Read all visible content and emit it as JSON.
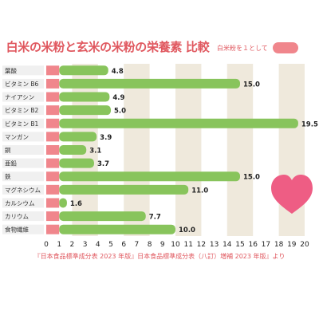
{
  "title": "白米の米粉と玄米の米粉の栄養素 比較",
  "legend": {
    "label": "白米粉を１として",
    "color": "#f0868c"
  },
  "source": "『日本食品標準成分表 2023 年版』日本食品標準成分表（八訂）増補 2023 年版』より",
  "colors": {
    "baseline": "#f0868c",
    "brown_rice": "#88c45c",
    "value_label": "#222222",
    "stripe": "#efe9dc",
    "heart": "#ee5d84",
    "title": "#e0585f",
    "row": "#f0f0f0"
  },
  "chart_data": {
    "type": "bar",
    "orientation": "horizontal",
    "categories": [
      "葉酸",
      "ビタミン B6",
      "ナイアシン",
      "ビタミン B2",
      "ビタミン B1",
      "マンガン",
      "銅",
      "亜鉛",
      "鉄",
      "マグネシウム",
      "カルシウム",
      "カリウム",
      "食物繊維"
    ],
    "series": [
      {
        "name": "白米粉を１として",
        "values": [
          1,
          1,
          1,
          1,
          1,
          1,
          1,
          1,
          1,
          1,
          1,
          1,
          1
        ]
      },
      {
        "values": [
          4.8,
          15.0,
          4.9,
          5.0,
          19.5,
          3.9,
          3.1,
          3.7,
          15.0,
          11.0,
          1.6,
          7.7,
          10.0
        ]
      }
    ],
    "value_labels": [
      "4.8",
      "15.0",
      "4.9",
      "5.0",
      "19.5",
      "3.9",
      "3.1",
      "3.7",
      "15.0",
      "11.0",
      "1.6",
      "7.7",
      "10.0"
    ],
    "xticks": [
      "0",
      "1",
      "2",
      "3",
      "4",
      "5",
      "6",
      "7",
      "8",
      "9",
      "10",
      "11",
      "12",
      "13",
      "14",
      "15",
      "16",
      "17",
      "18",
      "19",
      "20"
    ],
    "xlim": [
      0,
      20
    ],
    "striped_background": true,
    "legend_position": "top-right"
  }
}
